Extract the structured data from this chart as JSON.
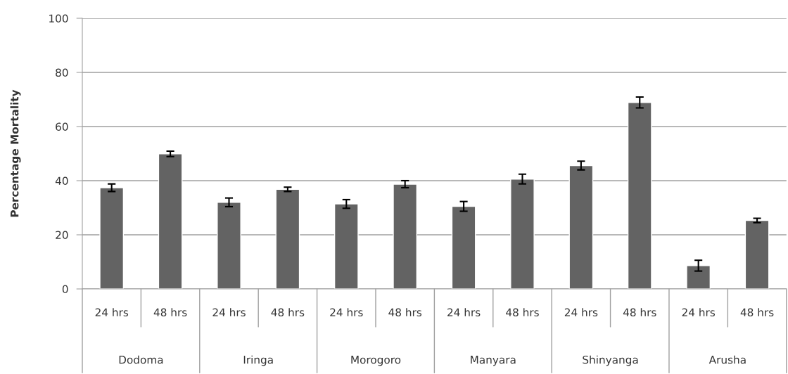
{
  "chart_data": {
    "type": "bar",
    "ylabel": "Percentage Mortality",
    "categories": [
      "24 hrs",
      "48 hrs",
      "24 hrs",
      "48 hrs",
      "24 hrs",
      "48 hrs",
      "24 hrs",
      "48 hrs",
      "24 hrs",
      "48 hrs",
      "24 hrs",
      "48 hrs"
    ],
    "values": [
      37.4,
      49.9,
      32,
      36.8,
      31.4,
      38.7,
      30.5,
      40.6,
      45.6,
      68.9,
      8.6,
      25.3
    ],
    "errors": [
      1.4,
      1,
      1.6,
      0.8,
      1.6,
      1.3,
      1.8,
      1.8,
      1.6,
      2,
      2,
      0.8
    ],
    "color": "#636363",
    "annotations": [
      "Dodoma",
      "Iringa",
      "Morogoro",
      "Manyara",
      "Shinyanga",
      "Arusha"
    ],
    "ylim": [
      0,
      100
    ],
    "yticks": [
      0,
      20,
      40,
      60,
      80,
      100
    ],
    "grid": "y",
    "legend": false
  }
}
